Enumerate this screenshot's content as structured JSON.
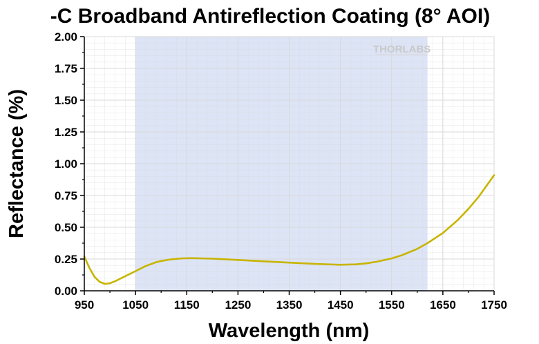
{
  "chart_data": {
    "type": "line",
    "title": "-C Broadband Antireflection Coating (8° AOI)",
    "xlabel": "Wavelength (nm)",
    "ylabel": "Reflectance (%)",
    "xlim": [
      950,
      1750
    ],
    "ylim": [
      0,
      2.0
    ],
    "x_ticks": [
      950,
      1050,
      1150,
      1250,
      1350,
      1450,
      1550,
      1650,
      1750
    ],
    "y_ticks": [
      "0.00",
      "0.25",
      "0.50",
      "0.75",
      "1.00",
      "1.25",
      "1.50",
      "1.75",
      "2.00"
    ],
    "grid": true,
    "shaded_band": [
      1050,
      1620
    ],
    "watermark": "THORLABS",
    "colors": {
      "line": "#c8b400",
      "band": "#dce4f6",
      "grid": "#d8d8d8"
    },
    "series": [
      {
        "x": [
          950,
          960,
          970,
          980,
          990,
          1000,
          1010,
          1020,
          1030,
          1040,
          1050,
          1060,
          1070,
          1080,
          1090,
          1100,
          1120,
          1140,
          1160,
          1180,
          1200,
          1250,
          1300,
          1350,
          1400,
          1450,
          1480,
          1500,
          1520,
          1550,
          1570,
          1600,
          1620,
          1650,
          1680,
          1700,
          1720,
          1750
        ],
        "y": [
          0.27,
          0.18,
          0.11,
          0.07,
          0.055,
          0.06,
          0.075,
          0.095,
          0.115,
          0.135,
          0.155,
          0.175,
          0.195,
          0.21,
          0.225,
          0.235,
          0.248,
          0.255,
          0.257,
          0.255,
          0.253,
          0.243,
          0.232,
          0.222,
          0.212,
          0.205,
          0.208,
          0.216,
          0.228,
          0.255,
          0.28,
          0.33,
          0.375,
          0.455,
          0.56,
          0.645,
          0.74,
          0.91
        ]
      }
    ]
  }
}
